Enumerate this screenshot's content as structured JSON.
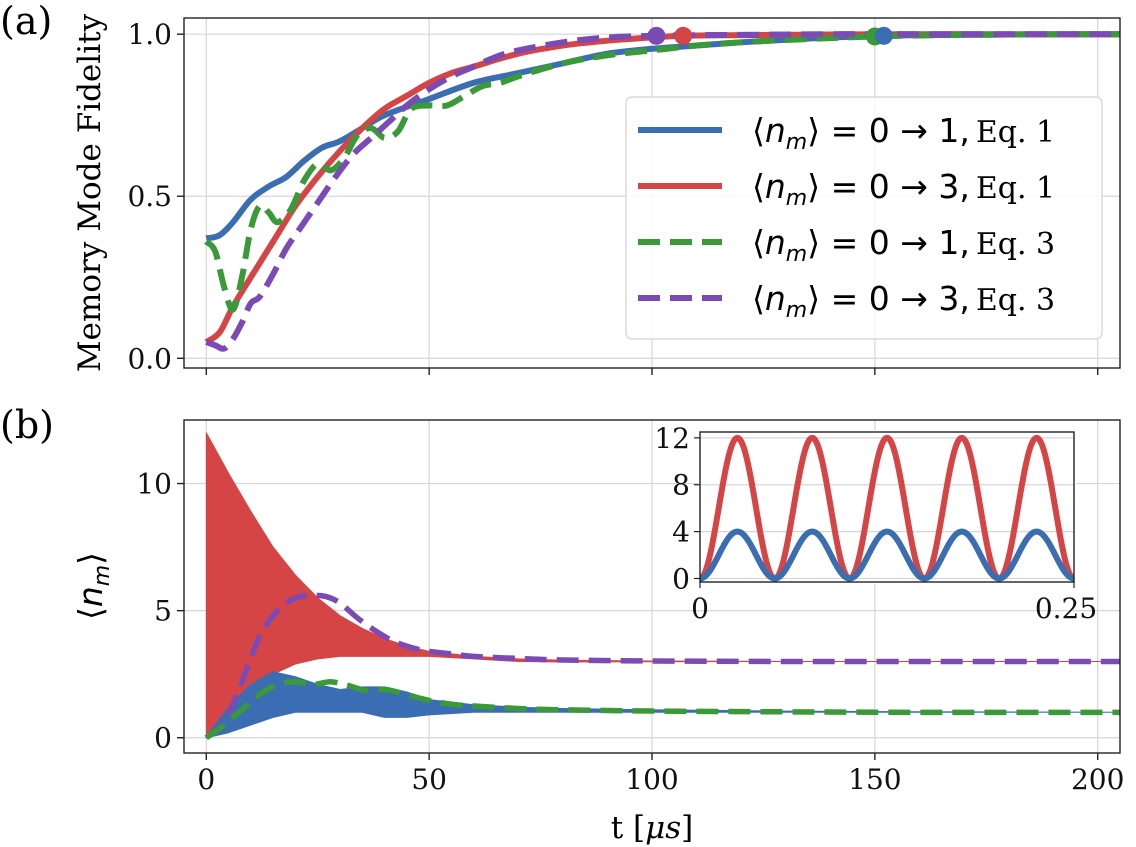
{
  "chart_data": [
    {
      "panel": "(a)",
      "type": "line",
      "ylabel": "Memory Mode Fidelity",
      "xlim": [
        -5,
        205
      ],
      "ylim": [
        -0.03,
        1.05
      ],
      "xticks": [
        0,
        50,
        100,
        150,
        200
      ],
      "yticks": [
        0.0,
        0.5,
        1.0
      ],
      "ytick_labels": [
        "0.0",
        "0.5",
        "1.0"
      ],
      "grid": true,
      "legend_position": "right",
      "colors": {
        "blue": "#3b6db3",
        "red": "#d64545",
        "green": "#3a9a37",
        "purple": "#7a4bb5"
      },
      "series": [
        {
          "name": "⟨n_m⟩ = 0 → 1, Eq. 1",
          "label_math": "⟨nm⟩ = 0 → 1,",
          "label_eq": "Eq. 1",
          "color": "#3b6db3",
          "dash": "solid",
          "x": [
            0,
            3,
            6,
            10,
            14,
            18,
            22,
            26,
            30,
            35,
            40,
            50,
            60,
            70,
            80,
            90,
            100,
            110,
            120,
            130,
            140,
            152,
            160,
            180,
            205
          ],
          "y": [
            0.37,
            0.38,
            0.42,
            0.49,
            0.53,
            0.56,
            0.61,
            0.65,
            0.67,
            0.71,
            0.75,
            0.8,
            0.85,
            0.88,
            0.91,
            0.94,
            0.955,
            0.965,
            0.975,
            0.983,
            0.99,
            0.995,
            0.997,
            0.999,
            1.0
          ],
          "marker": {
            "x": 152,
            "y": 0.995
          }
        },
        {
          "name": "⟨n_m⟩ = 0 → 3, Eq. 1",
          "label_math": "⟨nm⟩ = 0 → 3,",
          "label_eq": "Eq. 1",
          "color": "#d64545",
          "dash": "solid",
          "x": [
            0,
            3,
            6,
            10,
            15,
            20,
            25,
            30,
            35,
            40,
            45,
            50,
            55,
            60,
            70,
            80,
            90,
            100,
            107,
            120,
            140,
            160,
            180,
            205
          ],
          "y": [
            0.05,
            0.08,
            0.16,
            0.25,
            0.36,
            0.47,
            0.56,
            0.64,
            0.71,
            0.77,
            0.81,
            0.85,
            0.88,
            0.9,
            0.94,
            0.965,
            0.98,
            0.99,
            0.995,
            0.997,
            0.999,
            1.0,
            1.0,
            1.0
          ],
          "marker": {
            "x": 107,
            "y": 0.995
          }
        },
        {
          "name": "⟨n_m⟩ = 0 → 1, Eq. 3",
          "label_math": "⟨nm⟩ = 0 → 1,",
          "label_eq": "Eq. 3",
          "color": "#3a9a37",
          "dash": "dashed",
          "x": [
            0,
            2,
            4,
            6,
            8,
            10,
            12,
            14,
            16,
            19,
            22,
            25,
            28,
            31,
            34,
            37,
            40,
            43,
            46,
            50,
            54,
            58,
            62,
            66,
            70,
            80,
            90,
            100,
            110,
            120,
            130,
            140,
            150,
            160,
            180,
            205
          ],
          "y": [
            0.36,
            0.33,
            0.22,
            0.15,
            0.25,
            0.4,
            0.47,
            0.45,
            0.42,
            0.46,
            0.55,
            0.6,
            0.58,
            0.62,
            0.69,
            0.71,
            0.68,
            0.7,
            0.77,
            0.78,
            0.78,
            0.81,
            0.84,
            0.85,
            0.87,
            0.91,
            0.935,
            0.95,
            0.965,
            0.975,
            0.982,
            0.988,
            0.993,
            0.996,
            0.999,
            1.0
          ],
          "marker": {
            "x": 150,
            "y": 0.993
          }
        },
        {
          "name": "⟨n_m⟩ = 0 → 3, Eq. 3",
          "label_math": "⟨nm⟩ = 0 → 3,",
          "label_eq": "Eq. 3",
          "color": "#7a4bb5",
          "dash": "dashed",
          "x": [
            0,
            2,
            4,
            6,
            8,
            10,
            12,
            15,
            18,
            21,
            25,
            29,
            33,
            37,
            41,
            45,
            50,
            55,
            60,
            65,
            70,
            80,
            90,
            100,
            110,
            120,
            140,
            160,
            180,
            205
          ],
          "y": [
            0.05,
            0.04,
            0.03,
            0.06,
            0.11,
            0.17,
            0.19,
            0.26,
            0.34,
            0.4,
            0.48,
            0.56,
            0.63,
            0.68,
            0.73,
            0.78,
            0.83,
            0.87,
            0.9,
            0.93,
            0.95,
            0.975,
            0.99,
            0.995,
            0.997,
            0.998,
            1.0,
            1.0,
            1.0,
            1.0
          ],
          "marker": {
            "x": 101,
            "y": 0.995
          }
        }
      ]
    },
    {
      "panel": "(b)",
      "type": "line",
      "ylabel": "⟨nm⟩",
      "xlabel": "t [μs]",
      "xlim": [
        -5,
        205
      ],
      "ylim": [
        -0.6,
        12.5
      ],
      "xticks": [
        0,
        50,
        100,
        150,
        200
      ],
      "xtick_labels": [
        "0",
        "50",
        "100",
        "150",
        "200"
      ],
      "yticks": [
        0,
        5,
        10
      ],
      "ytick_labels": [
        "0",
        "5",
        "10"
      ],
      "grid": true,
      "bands": [
        {
          "name": "⟨n_m⟩ = 0 → 3, Eq. 1 (oscillation envelope)",
          "color": "#d64545",
          "x": [
            0,
            5,
            10,
            15,
            20,
            25,
            30,
            35,
            40,
            45,
            50,
            60,
            70,
            80,
            100,
            130,
            160,
            205
          ],
          "upper": [
            12.0,
            10.4,
            8.9,
            7.5,
            6.4,
            5.5,
            4.8,
            4.3,
            3.9,
            3.6,
            3.4,
            3.2,
            3.1,
            3.05,
            3.02,
            3.0,
            3.0,
            3.0
          ],
          "lower": [
            0.0,
            1.0,
            1.9,
            2.5,
            2.9,
            3.1,
            3.2,
            3.2,
            3.2,
            3.2,
            3.2,
            3.1,
            3.0,
            2.98,
            2.99,
            3.0,
            3.0,
            3.0
          ]
        },
        {
          "name": "⟨n_m⟩ = 0 → 1, Eq. 1 (oscillation envelope)",
          "color": "#3b6db3",
          "x": [
            0,
            5,
            10,
            15,
            20,
            25,
            30,
            35,
            40,
            45,
            50,
            60,
            70,
            80,
            100,
            130,
            160,
            205
          ],
          "upper": [
            0.05,
            1.2,
            2.1,
            2.6,
            2.4,
            2.1,
            1.9,
            2.0,
            2.0,
            1.8,
            1.5,
            1.3,
            1.2,
            1.15,
            1.1,
            1.05,
            1.02,
            1.0
          ],
          "lower": [
            0.0,
            0.2,
            0.5,
            0.8,
            1.0,
            1.0,
            1.0,
            1.0,
            0.8,
            0.8,
            0.9,
            1.0,
            1.0,
            1.0,
            1.0,
            1.0,
            1.0,
            1.0
          ]
        }
      ],
      "series": [
        {
          "name": "⟨n_m⟩ = 0 → 3, Eq. 3",
          "color": "#7a4bb5",
          "dash": "dashed",
          "x": [
            0,
            4,
            8,
            12,
            16,
            20,
            24,
            27,
            30,
            34,
            38,
            42,
            46,
            50,
            55,
            60,
            70,
            80,
            100,
            130,
            160,
            205
          ],
          "y": [
            0,
            0.6,
            2.2,
            4.0,
            5.0,
            5.5,
            5.6,
            5.55,
            5.3,
            4.7,
            4.2,
            3.8,
            3.55,
            3.4,
            3.3,
            3.2,
            3.12,
            3.06,
            3.02,
            3.0,
            3.0,
            3.0
          ]
        },
        {
          "name": "⟨n_m⟩ = 0 → 1, Eq. 3",
          "color": "#3a9a37",
          "dash": "dashed",
          "x": [
            0,
            4,
            8,
            12,
            16,
            20,
            24,
            28,
            32,
            36,
            40,
            44,
            48,
            52,
            56,
            60,
            70,
            80,
            100,
            130,
            160,
            205
          ],
          "y": [
            0,
            0.5,
            1.1,
            1.7,
            2.1,
            2.2,
            2.1,
            2.2,
            2.05,
            1.85,
            1.9,
            1.75,
            1.55,
            1.4,
            1.3,
            1.25,
            1.15,
            1.1,
            1.05,
            1.02,
            1.0,
            1.0
          ]
        }
      ],
      "inset": {
        "type": "line",
        "xlim": [
          0,
          0.25
        ],
        "ylim": [
          -0.3,
          12.5
        ],
        "xtick_labels": [
          "0",
          "0.25"
        ],
        "yticks": [
          0,
          4,
          8,
          12
        ],
        "ytick_labels": [
          "0",
          "4",
          "8",
          "12"
        ],
        "periods": 5,
        "series": [
          {
            "name": "⟨n_m⟩ = 0 → 3, Eq. 1",
            "color": "#d64545",
            "amplitude": 12
          },
          {
            "name": "⟨n_m⟩ = 0 → 1, Eq. 1",
            "color": "#3b6db3",
            "amplitude": 4
          }
        ]
      }
    }
  ]
}
